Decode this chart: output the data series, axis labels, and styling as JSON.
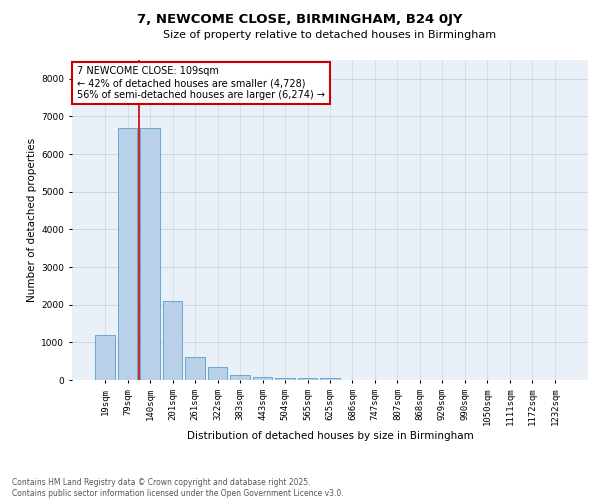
{
  "title": "7, NEWCOME CLOSE, BIRMINGHAM, B24 0JY",
  "subtitle": "Size of property relative to detached houses in Birmingham",
  "xlabel": "Distribution of detached houses by size in Birmingham",
  "ylabel": "Number of detached properties",
  "categories": [
    "19sqm",
    "79sqm",
    "140sqm",
    "201sqm",
    "261sqm",
    "322sqm",
    "383sqm",
    "443sqm",
    "504sqm",
    "565sqm",
    "625sqm",
    "686sqm",
    "747sqm",
    "807sqm",
    "868sqm",
    "929sqm",
    "990sqm",
    "1050sqm",
    "1111sqm",
    "1172sqm",
    "1232sqm"
  ],
  "values": [
    1200,
    6700,
    6700,
    2100,
    620,
    350,
    130,
    80,
    55,
    50,
    50,
    0,
    0,
    0,
    0,
    0,
    0,
    0,
    0,
    0,
    0
  ],
  "bar_color": "#b8d0e8",
  "bar_edgecolor": "#5a9ec8",
  "vline_color": "#cc0000",
  "vline_x_index": 1.5,
  "annotation_box_color": "#cc0000",
  "background_color": "#eaf0f8",
  "grid_color": "#c5d0e0",
  "ylim": [
    0,
    8500
  ],
  "yticks": [
    0,
    1000,
    2000,
    3000,
    4000,
    5000,
    6000,
    7000,
    8000
  ],
  "annotation_label": "7 NEWCOME CLOSE: 109sqm",
  "annotation_line1": "← 42% of detached houses are smaller (4,728)",
  "annotation_line2": "56% of semi-detached houses are larger (6,274) →",
  "footer_line1": "Contains HM Land Registry data © Crown copyright and database right 2025.",
  "footer_line2": "Contains public sector information licensed under the Open Government Licence v3.0.",
  "title_fontsize": 9.5,
  "subtitle_fontsize": 8.0,
  "ylabel_fontsize": 7.5,
  "xlabel_fontsize": 7.5,
  "tick_fontsize": 6.5,
  "annotation_fontsize": 7.0,
  "footer_fontsize": 5.5
}
